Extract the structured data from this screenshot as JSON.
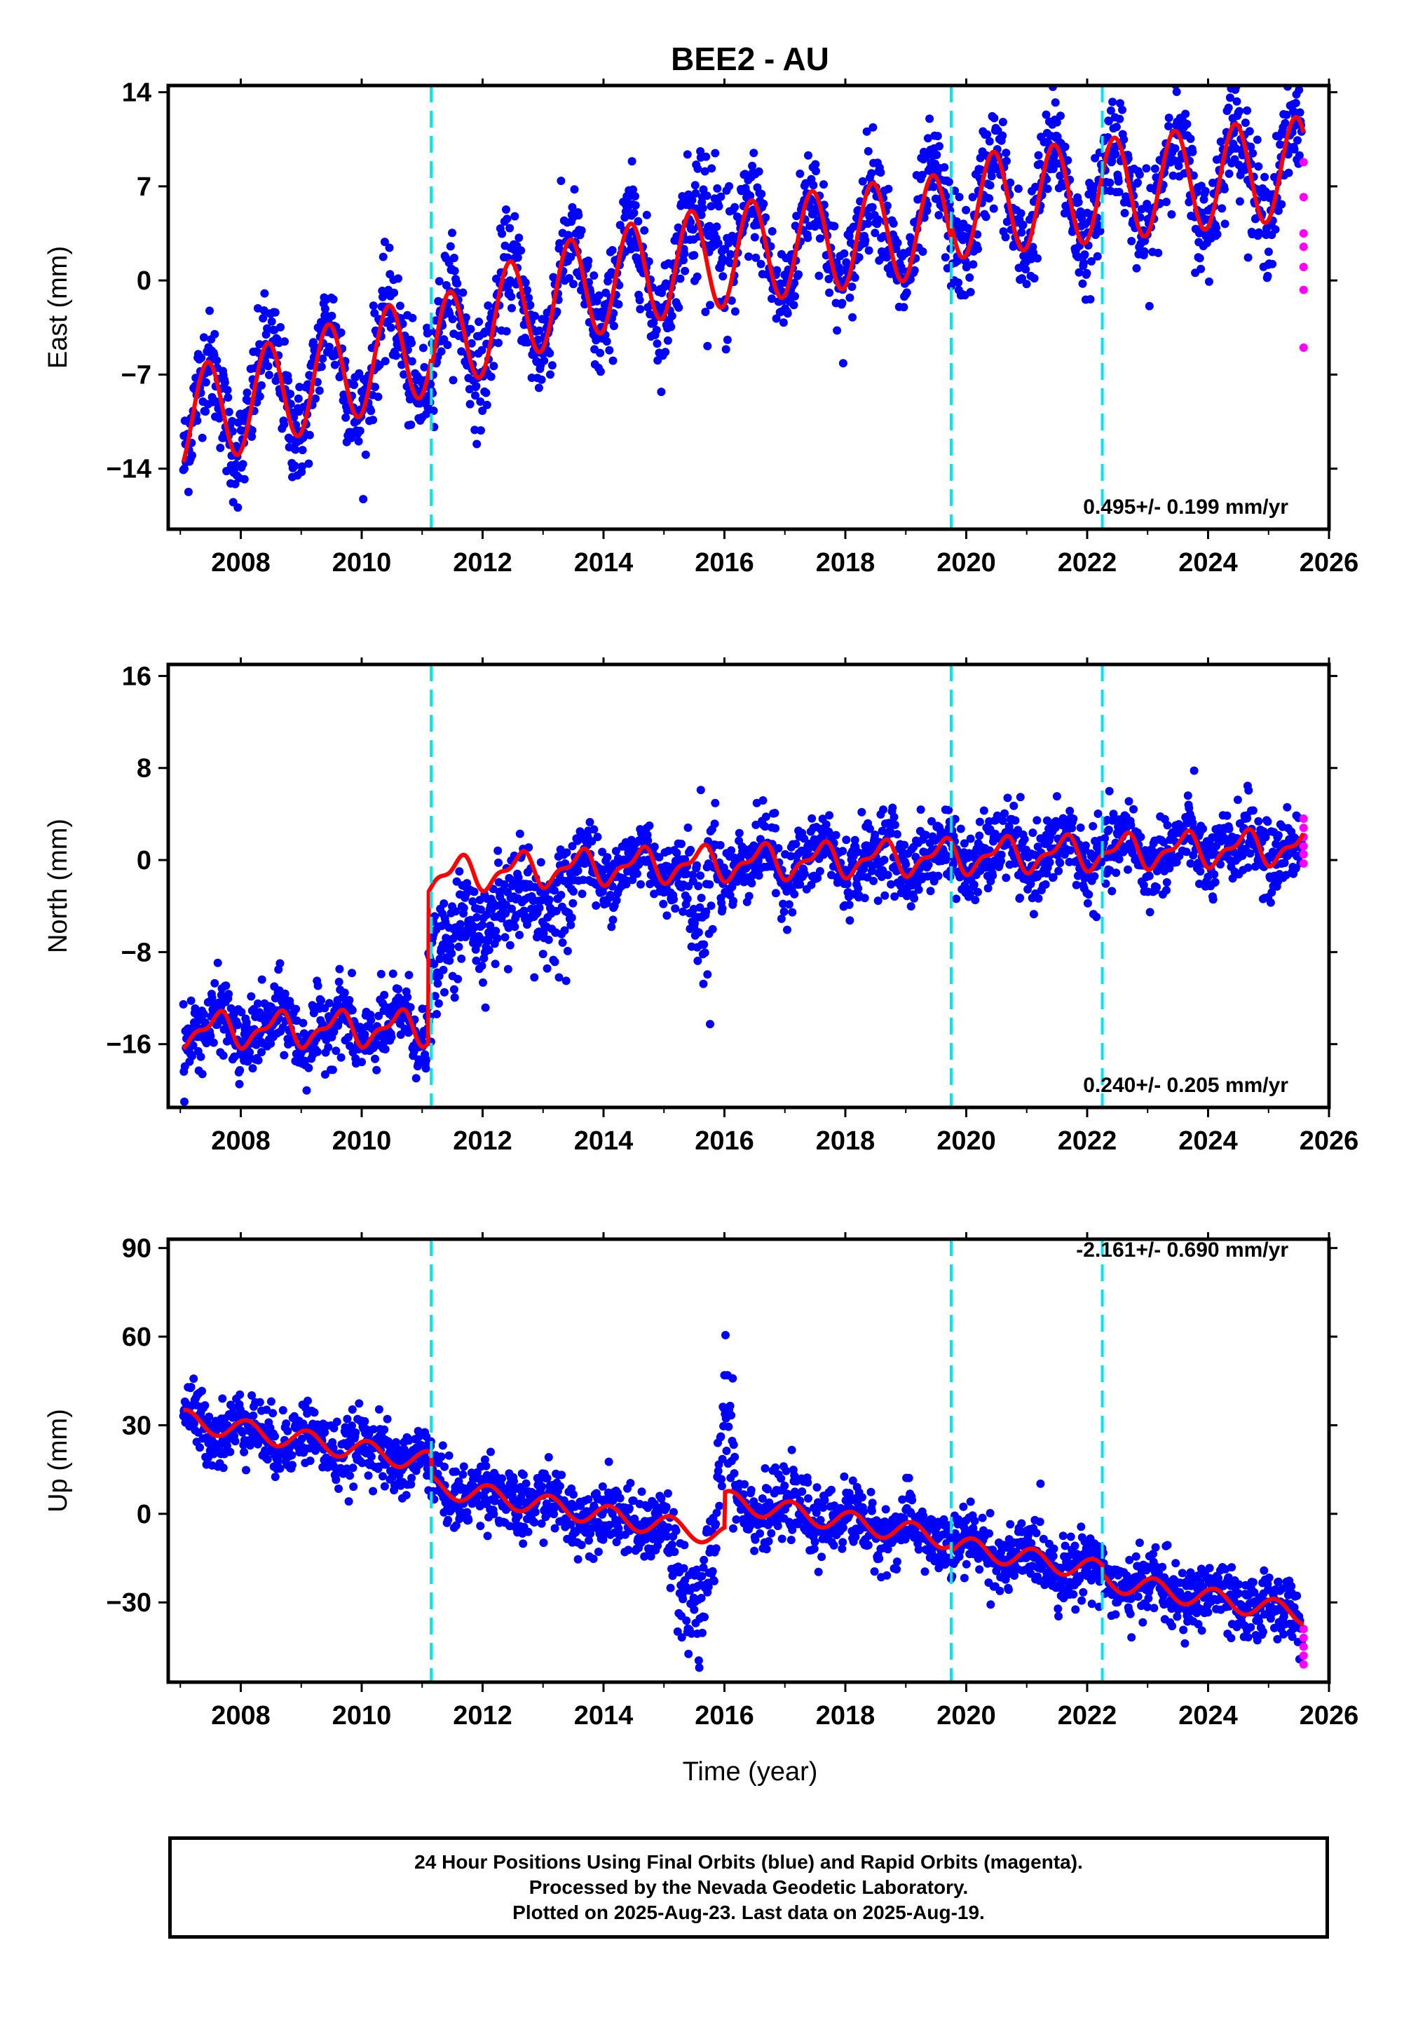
{
  "title": "BEE2 - AU",
  "xlabel": "Time (year)",
  "colors": {
    "final": "#0000ff",
    "rapid": "#ff00ff",
    "model": "#ff0000",
    "event": "#00e5ee",
    "frame": "#000000"
  },
  "footer": {
    "line1": "24 Hour Positions Using Final Orbits (blue) and Rapid Orbits (magenta).",
    "line2": "Processed by the Nevada Geodetic Laboratory.",
    "line3": "Plotted on 2025-Aug-23. Last data on 2025-Aug-19."
  },
  "chart_data": [
    {
      "type": "scatter",
      "panel": "east",
      "ylabel": "East (mm)",
      "rate_label": "0.495+/- 0.199 mm/yr",
      "xlim": [
        2006.8,
        2026.0
      ],
      "ylim": [
        -18.5,
        14.5
      ],
      "x_ticks": [
        2008,
        2010,
        2012,
        2014,
        2016,
        2018,
        2020,
        2022,
        2024,
        2026
      ],
      "y_ticks": [
        14,
        7,
        0,
        -7,
        -14
      ],
      "event_lines": [
        2011.15,
        2019.75,
        2022.25
      ],
      "series": [
        {
          "name": "Final Orbits",
          "color": "#0000ff",
          "kind": "points"
        },
        {
          "name": "Rapid Orbits",
          "color": "#ff00ff",
          "kind": "points",
          "values": [
            [
              2025.58,
              8.8
            ],
            [
              2025.58,
              6.2
            ],
            [
              2025.58,
              3.5
            ],
            [
              2025.58,
              2.5
            ],
            [
              2025.58,
              1.0
            ],
            [
              2025.58,
              -0.7
            ],
            [
              2025.58,
              -5.0
            ]
          ]
        },
        {
          "name": "Model",
          "color": "#ff0000",
          "kind": "line"
        }
      ]
    },
    {
      "type": "scatter",
      "panel": "north",
      "ylabel": "North (mm)",
      "rate_label": "0.240+/- 0.205 mm/yr",
      "xlim": [
        2006.8,
        2026.0
      ],
      "ylim": [
        -21.5,
        17.0
      ],
      "x_ticks": [
        2008,
        2010,
        2012,
        2014,
        2016,
        2018,
        2020,
        2022,
        2024,
        2026
      ],
      "y_ticks": [
        16,
        8,
        0,
        -8,
        -16
      ],
      "event_lines": [
        2011.15,
        2019.75,
        2022.25
      ],
      "series": [
        {
          "name": "Final Orbits",
          "color": "#0000ff",
          "kind": "points"
        },
        {
          "name": "Rapid Orbits",
          "color": "#ff00ff",
          "kind": "points",
          "values": [
            [
              2025.58,
              3.6
            ],
            [
              2025.58,
              2.8
            ],
            [
              2025.58,
              2.0
            ],
            [
              2025.58,
              1.2
            ],
            [
              2025.58,
              0.5
            ],
            [
              2025.58,
              -0.3
            ]
          ]
        },
        {
          "name": "Model",
          "color": "#ff0000",
          "kind": "line"
        }
      ]
    },
    {
      "type": "scatter",
      "panel": "up",
      "ylabel": "Up (mm)",
      "rate_label": "-2.161+/- 0.690 mm/yr",
      "xlim": [
        2006.8,
        2026.0
      ],
      "ylim": [
        -57,
        93
      ],
      "x_ticks": [
        2008,
        2010,
        2012,
        2014,
        2016,
        2018,
        2020,
        2022,
        2024,
        2026
      ],
      "y_ticks": [
        90,
        60,
        30,
        0,
        -30
      ],
      "event_lines": [
        2011.15,
        2019.75,
        2022.25
      ],
      "series": [
        {
          "name": "Final Orbits",
          "color": "#0000ff",
          "kind": "points"
        },
        {
          "name": "Rapid Orbits",
          "color": "#ff00ff",
          "kind": "points",
          "values": [
            [
              2025.58,
              -39
            ],
            [
              2025.58,
              -42
            ],
            [
              2025.58,
              -45
            ],
            [
              2025.58,
              -48
            ],
            [
              2025.58,
              -51
            ]
          ]
        },
        {
          "name": "Model",
          "color": "#ff0000",
          "kind": "line"
        }
      ]
    }
  ]
}
